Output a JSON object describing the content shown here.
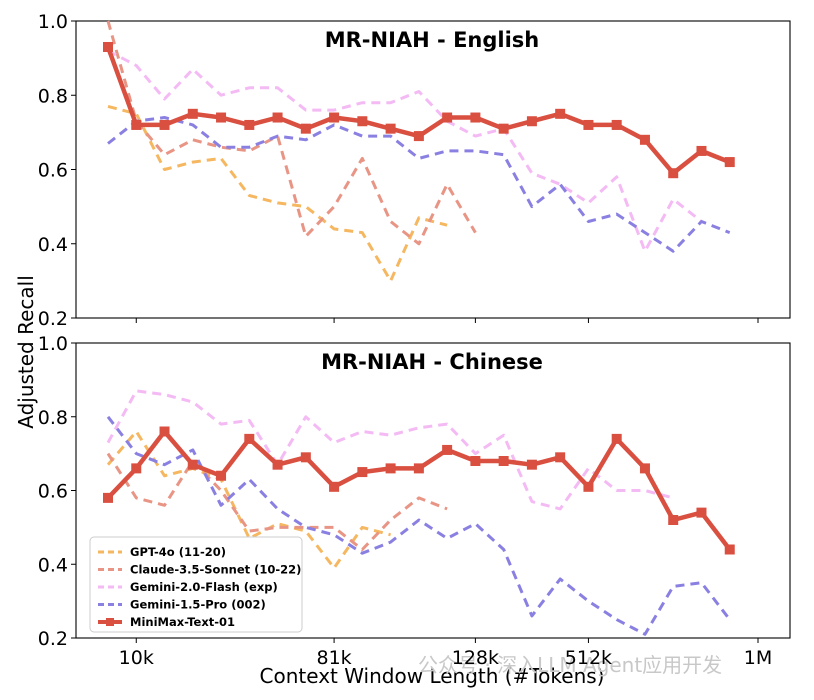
{
  "figure": {
    "ylabel": "Adjusted Recall",
    "xlabel": "Context Window Length (#Tokens)",
    "watermark": "公众号 · 深入LLM Agent应用开发"
  },
  "chart_data": [
    {
      "type": "line",
      "title": "MR-NIAH - English",
      "ylim": [
        0.2,
        1.0
      ],
      "yticks": [
        "0.2",
        "0.4",
        "0.6",
        "0.8",
        "1.0"
      ],
      "x_count": 24,
      "xticks": [],
      "series": [
        {
          "name": "GPT-4o (11-20)",
          "color": "#F5B760",
          "dash": true,
          "start": 0,
          "values": [
            0.77,
            0.75,
            0.6,
            0.62,
            0.63,
            0.53,
            0.51,
            0.5,
            0.44,
            0.43,
            0.3,
            0.47,
            0.45
          ]
        },
        {
          "name": "Claude-3.5-Sonnet (10-22)",
          "color": "#E89585",
          "dash": true,
          "start": 0,
          "values": [
            1.0,
            0.73,
            0.64,
            0.68,
            0.66,
            0.65,
            0.69,
            0.42,
            0.5,
            0.63,
            0.46,
            0.4,
            0.56,
            0.43
          ]
        },
        {
          "name": "Gemini-2.0-Flash (exp)",
          "color": "#F4BAF4",
          "dash": true,
          "start": 0,
          "values": [
            0.92,
            0.88,
            0.79,
            0.87,
            0.8,
            0.82,
            0.82,
            0.76,
            0.76,
            0.78,
            0.78,
            0.81,
            0.73,
            0.69,
            0.71,
            0.59,
            0.56,
            0.51,
            0.58,
            0.38,
            0.52,
            0.46
          ]
        },
        {
          "name": "Gemini-1.5-Pro (002)",
          "color": "#8A80E2",
          "dash": true,
          "start": 0,
          "values": [
            0.67,
            0.73,
            0.74,
            0.72,
            0.66,
            0.66,
            0.69,
            0.68,
            0.72,
            0.69,
            0.69,
            0.63,
            0.65,
            0.65,
            0.64,
            0.5,
            0.56,
            0.46,
            0.48,
            0.43,
            0.38,
            0.46,
            0.43
          ]
        },
        {
          "name": "MiniMax-Text-01",
          "color": "#D94F40",
          "dash": false,
          "start": 0,
          "values": [
            0.93,
            0.72,
            0.72,
            0.75,
            0.74,
            0.72,
            0.74,
            0.71,
            0.74,
            0.73,
            0.71,
            0.69,
            0.74,
            0.74,
            0.71,
            0.73,
            0.75,
            0.72,
            0.72,
            0.68,
            0.59,
            0.65,
            0.62
          ]
        }
      ]
    },
    {
      "type": "line",
      "title": "MR-NIAH - Chinese",
      "ylim": [
        0.2,
        1.0
      ],
      "yticks": [
        "0.2",
        "0.4",
        "0.6",
        "0.8",
        "1.0"
      ],
      "x_count": 24,
      "xticks": [
        {
          "label": "10k",
          "index": 1
        },
        {
          "label": "81k",
          "index": 8
        },
        {
          "label": "128k",
          "index": 13
        },
        {
          "label": "512k",
          "index": 17
        },
        {
          "label": "1M",
          "index": 23
        }
      ],
      "legend": {
        "position": "lower-left"
      },
      "series": [
        {
          "name": "GPT-4o (11-20)",
          "color": "#F5B760",
          "dash": true,
          "start": 0,
          "values": [
            0.67,
            0.76,
            0.64,
            0.66,
            0.63,
            0.47,
            0.51,
            0.49,
            0.39,
            0.5,
            0.48
          ]
        },
        {
          "name": "Claude-3.5-Sonnet (10-22)",
          "color": "#E89585",
          "dash": true,
          "start": 0,
          "values": [
            0.7,
            0.58,
            0.56,
            0.68,
            0.6,
            0.49,
            0.5,
            0.5,
            0.5,
            0.44,
            0.52,
            0.58,
            0.55
          ]
        },
        {
          "name": "Gemini-2.0-Flash (exp)",
          "color": "#F4BAF4",
          "dash": true,
          "start": 0,
          "values": [
            0.73,
            0.87,
            0.86,
            0.84,
            0.78,
            0.79,
            0.67,
            0.8,
            0.73,
            0.76,
            0.75,
            0.77,
            0.78,
            0.7,
            0.75,
            0.57,
            0.55,
            0.66,
            0.6,
            0.6,
            0.58
          ]
        },
        {
          "name": "Gemini-1.5-Pro (002)",
          "color": "#8A80E2",
          "dash": true,
          "start": 0,
          "values": [
            0.8,
            0.7,
            0.67,
            0.71,
            0.56,
            0.63,
            0.55,
            0.5,
            0.48,
            0.43,
            0.46,
            0.52,
            0.47,
            0.51,
            0.44,
            0.26,
            0.36,
            0.3,
            0.25,
            0.21,
            0.34,
            0.35,
            0.25
          ]
        },
        {
          "name": "MiniMax-Text-01",
          "color": "#D94F40",
          "dash": false,
          "start": 0,
          "values": [
            0.58,
            0.66,
            0.76,
            0.67,
            0.64,
            0.74,
            0.67,
            0.69,
            0.61,
            0.65,
            0.66,
            0.66,
            0.71,
            0.68,
            0.68,
            0.67,
            0.69,
            0.61,
            0.74,
            0.66,
            0.52,
            0.54,
            0.44
          ]
        }
      ]
    }
  ]
}
